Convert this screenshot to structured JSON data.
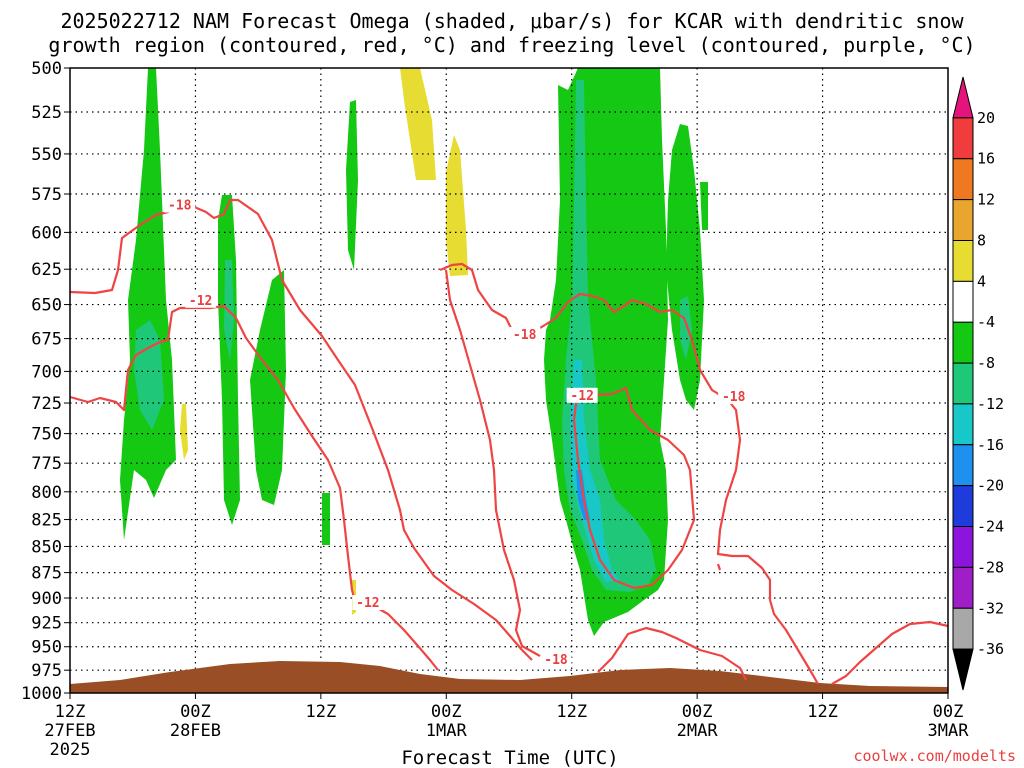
{
  "chart_data": {
    "type": "heatmap",
    "title_line1": "2025022712 NAM Forecast Omega (shaded, μbar/s) for KCAR with dendritic snow",
    "title_line2": "growth region (contoured, red, °C) and freezing level (contoured, purple, °C)",
    "xlabel": "Forecast Time (UTC)",
    "credit": "coolwx.com/modelts",
    "y_axis": {
      "label": "",
      "ticks": [
        500,
        525,
        550,
        575,
        600,
        625,
        650,
        675,
        700,
        725,
        750,
        775,
        800,
        825,
        850,
        875,
        900,
        925,
        950,
        975,
        1000
      ],
      "range": [
        500,
        1000
      ]
    },
    "x_axis": {
      "ticks": [
        {
          "hour": 0,
          "label": "12Z",
          "sub": "27FEB",
          "sub2": "2025"
        },
        {
          "hour": 12,
          "label": "00Z",
          "sub": "28FEB",
          "sub2": ""
        },
        {
          "hour": 24,
          "label": "12Z",
          "sub": "",
          "sub2": ""
        },
        {
          "hour": 36,
          "label": "00Z",
          "sub": "1MAR",
          "sub2": ""
        },
        {
          "hour": 48,
          "label": "12Z",
          "sub": "",
          "sub2": ""
        },
        {
          "hour": 60,
          "label": "00Z",
          "sub": "2MAR",
          "sub2": ""
        },
        {
          "hour": 72,
          "label": "12Z",
          "sub": "",
          "sub2": ""
        },
        {
          "hour": 84,
          "label": "00Z",
          "sub": "3MAR",
          "sub2": ""
        }
      ],
      "range": [
        0,
        84
      ]
    },
    "colorbar": {
      "labels": [
        "20",
        "16",
        "12",
        "8",
        "4",
        "-4",
        "-8",
        "-12",
        "-16",
        "-20",
        "-24",
        "-28",
        "-32",
        "-36"
      ],
      "colors": [
        "#e4147c",
        "#f03c3c",
        "#f07820",
        "#e8a630",
        "#e6dc32",
        "#ffffff",
        "#14c814",
        "#1ec878",
        "#18c8c8",
        "#1e90f0",
        "#1e3cdc",
        "#8c14dc",
        "#a01ec8",
        "#a8a8a8",
        "#000000"
      ]
    },
    "contour_labels": [
      {
        "text": "-18",
        "hour": 10.5,
        "level": 583
      },
      {
        "text": "-12",
        "hour": 12.5,
        "level": 648
      },
      {
        "text": "-18",
        "hour": 43.5,
        "level": 673
      },
      {
        "text": "-12",
        "hour": 49.0,
        "level": 720
      },
      {
        "text": "-18",
        "hour": 63.5,
        "level": 721
      },
      {
        "text": "-12",
        "hour": 28.5,
        "level": 906
      },
      {
        "text": "-18",
        "hour": 46.5,
        "level": 965
      }
    ],
    "omega_regions": [
      {
        "name": "weak-ascent-early",
        "category": "-4 to -8"
      },
      {
        "name": "ascent-mid-28feb",
        "category": "-8 to -12"
      },
      {
        "name": "strong-ascent-1mar-12z",
        "category": "-12 to -16"
      },
      {
        "name": "weak-descent",
        "category": "4 to 8"
      }
    ]
  }
}
